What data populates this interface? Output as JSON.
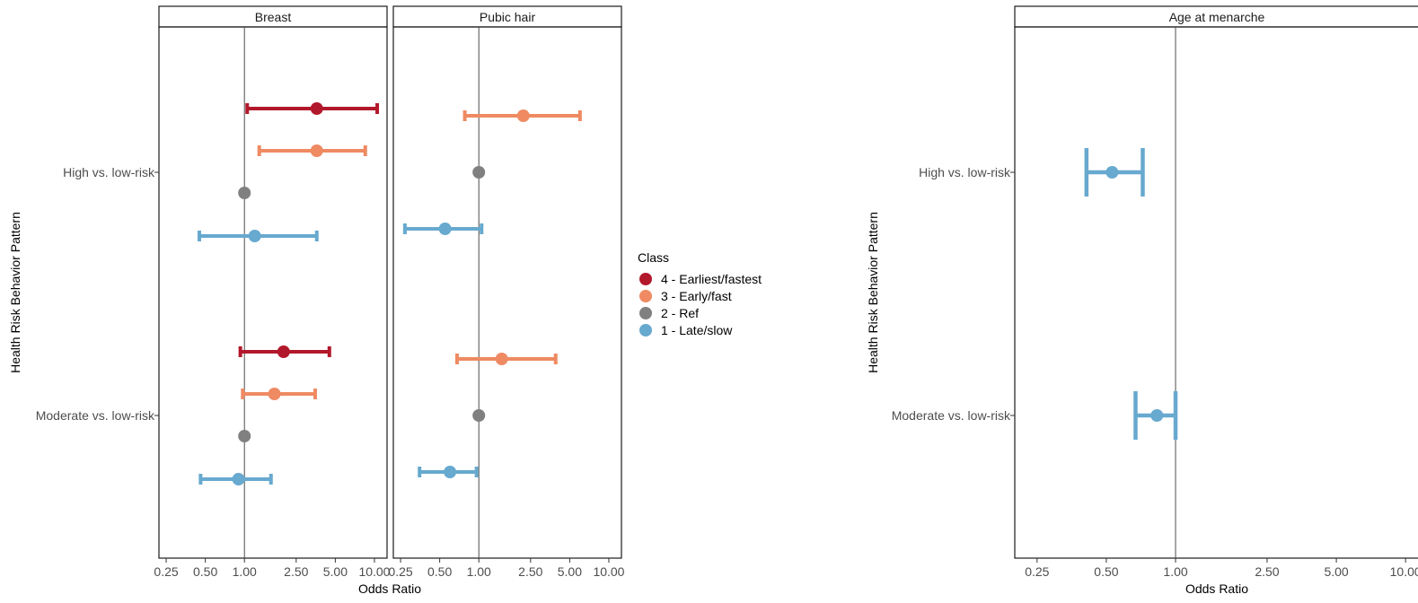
{
  "colors": {
    "class4": "#b2182b",
    "class3": "#ef8a62",
    "class2": "#808080",
    "class1": "#67a9cf"
  },
  "legend": {
    "title": "Class",
    "items": [
      {
        "label": "4 - Earliest/fastest",
        "color": "#b2182b"
      },
      {
        "label": "3 - Early/fast",
        "color": "#ef8a62"
      },
      {
        "label": "2 - Ref",
        "color": "#808080"
      },
      {
        "label": "1 - Late/slow",
        "color": "#67a9cf"
      }
    ]
  },
  "left_figure": {
    "ylabel": "Health Risk Behavior Pattern",
    "xlabel": "Odds Ratio"
  },
  "right_figure": {
    "ylabel": "Health Risk Behavior Pattern",
    "xlabel": "Odds Ratio"
  },
  "chart_data": [
    {
      "type": "scatter",
      "subtype": "forest-plot",
      "panel": "Breast",
      "x_scale": "log",
      "xlim": [
        0.22,
        12.5
      ],
      "x_ticks": [
        "0.25",
        "0.50",
        "1.00",
        "2.50",
        "5.00",
        "10.00"
      ],
      "reference_line": 1.0,
      "categories": [
        "High vs. low-risk",
        "Moderate vs. low-risk"
      ],
      "series": [
        {
          "name": "4 - Earliest/fastest",
          "values": [
            {
              "category": "High vs. low-risk",
              "or": 3.6,
              "lo": 1.05,
              "hi": 10.5
            },
            {
              "category": "Moderate vs. low-risk",
              "or": 2.0,
              "lo": 0.93,
              "hi": 4.5
            }
          ]
        },
        {
          "name": "3 - Early/fast",
          "values": [
            {
              "category": "High vs. low-risk",
              "or": 3.6,
              "lo": 1.3,
              "hi": 8.5
            },
            {
              "category": "Moderate vs. low-risk",
              "or": 1.7,
              "lo": 0.97,
              "hi": 3.5
            }
          ]
        },
        {
          "name": "2 - Ref",
          "values": [
            {
              "category": "High vs. low-risk",
              "or": 1.0
            },
            {
              "category": "Moderate vs. low-risk",
              "or": 1.0
            }
          ]
        },
        {
          "name": "1 - Late/slow",
          "values": [
            {
              "category": "High vs. low-risk",
              "or": 1.2,
              "lo": 0.45,
              "hi": 3.6
            },
            {
              "category": "Moderate vs. low-risk",
              "or": 0.9,
              "lo": 0.46,
              "hi": 1.6
            }
          ]
        }
      ]
    },
    {
      "type": "scatter",
      "subtype": "forest-plot",
      "panel": "Pubic hair",
      "x_scale": "log",
      "xlim": [
        0.22,
        12.5
      ],
      "x_ticks": [
        "0.25",
        "0.50",
        "1.00",
        "2.50",
        "5.00",
        "10.00"
      ],
      "reference_line": 1.0,
      "categories": [
        "High vs. low-risk",
        "Moderate vs. low-risk"
      ],
      "series": [
        {
          "name": "3 - Early/fast",
          "values": [
            {
              "category": "High vs. low-risk",
              "or": 2.2,
              "lo": 0.78,
              "hi": 6.0
            },
            {
              "category": "Moderate vs. low-risk",
              "or": 1.5,
              "lo": 0.68,
              "hi": 3.9
            }
          ]
        },
        {
          "name": "2 - Ref",
          "values": [
            {
              "category": "High vs. low-risk",
              "or": 1.0
            },
            {
              "category": "Moderate vs. low-risk",
              "or": 1.0
            }
          ]
        },
        {
          "name": "1 - Late/slow",
          "values": [
            {
              "category": "High vs. low-risk",
              "or": 0.55,
              "lo": 0.27,
              "hi": 1.05
            },
            {
              "category": "Moderate vs. low-risk",
              "or": 0.6,
              "lo": 0.35,
              "hi": 0.96
            }
          ]
        }
      ]
    },
    {
      "type": "scatter",
      "subtype": "forest-plot",
      "panel": "Age at menarche",
      "x_scale": "log",
      "xlim": [
        0.2,
        12.5
      ],
      "x_ticks": [
        "0.25",
        "0.50",
        "1.00",
        "2.50",
        "5.00",
        "10.00"
      ],
      "reference_line": 1.0,
      "categories": [
        "High vs. low-risk",
        "Moderate vs. low-risk"
      ],
      "series": [
        {
          "name": "1 - Late/slow",
          "values": [
            {
              "category": "High vs. low-risk",
              "or": 0.53,
              "lo": 0.41,
              "hi": 0.72
            },
            {
              "category": "Moderate vs. low-risk",
              "or": 0.83,
              "lo": 0.67,
              "hi": 1.0
            }
          ]
        }
      ]
    }
  ]
}
